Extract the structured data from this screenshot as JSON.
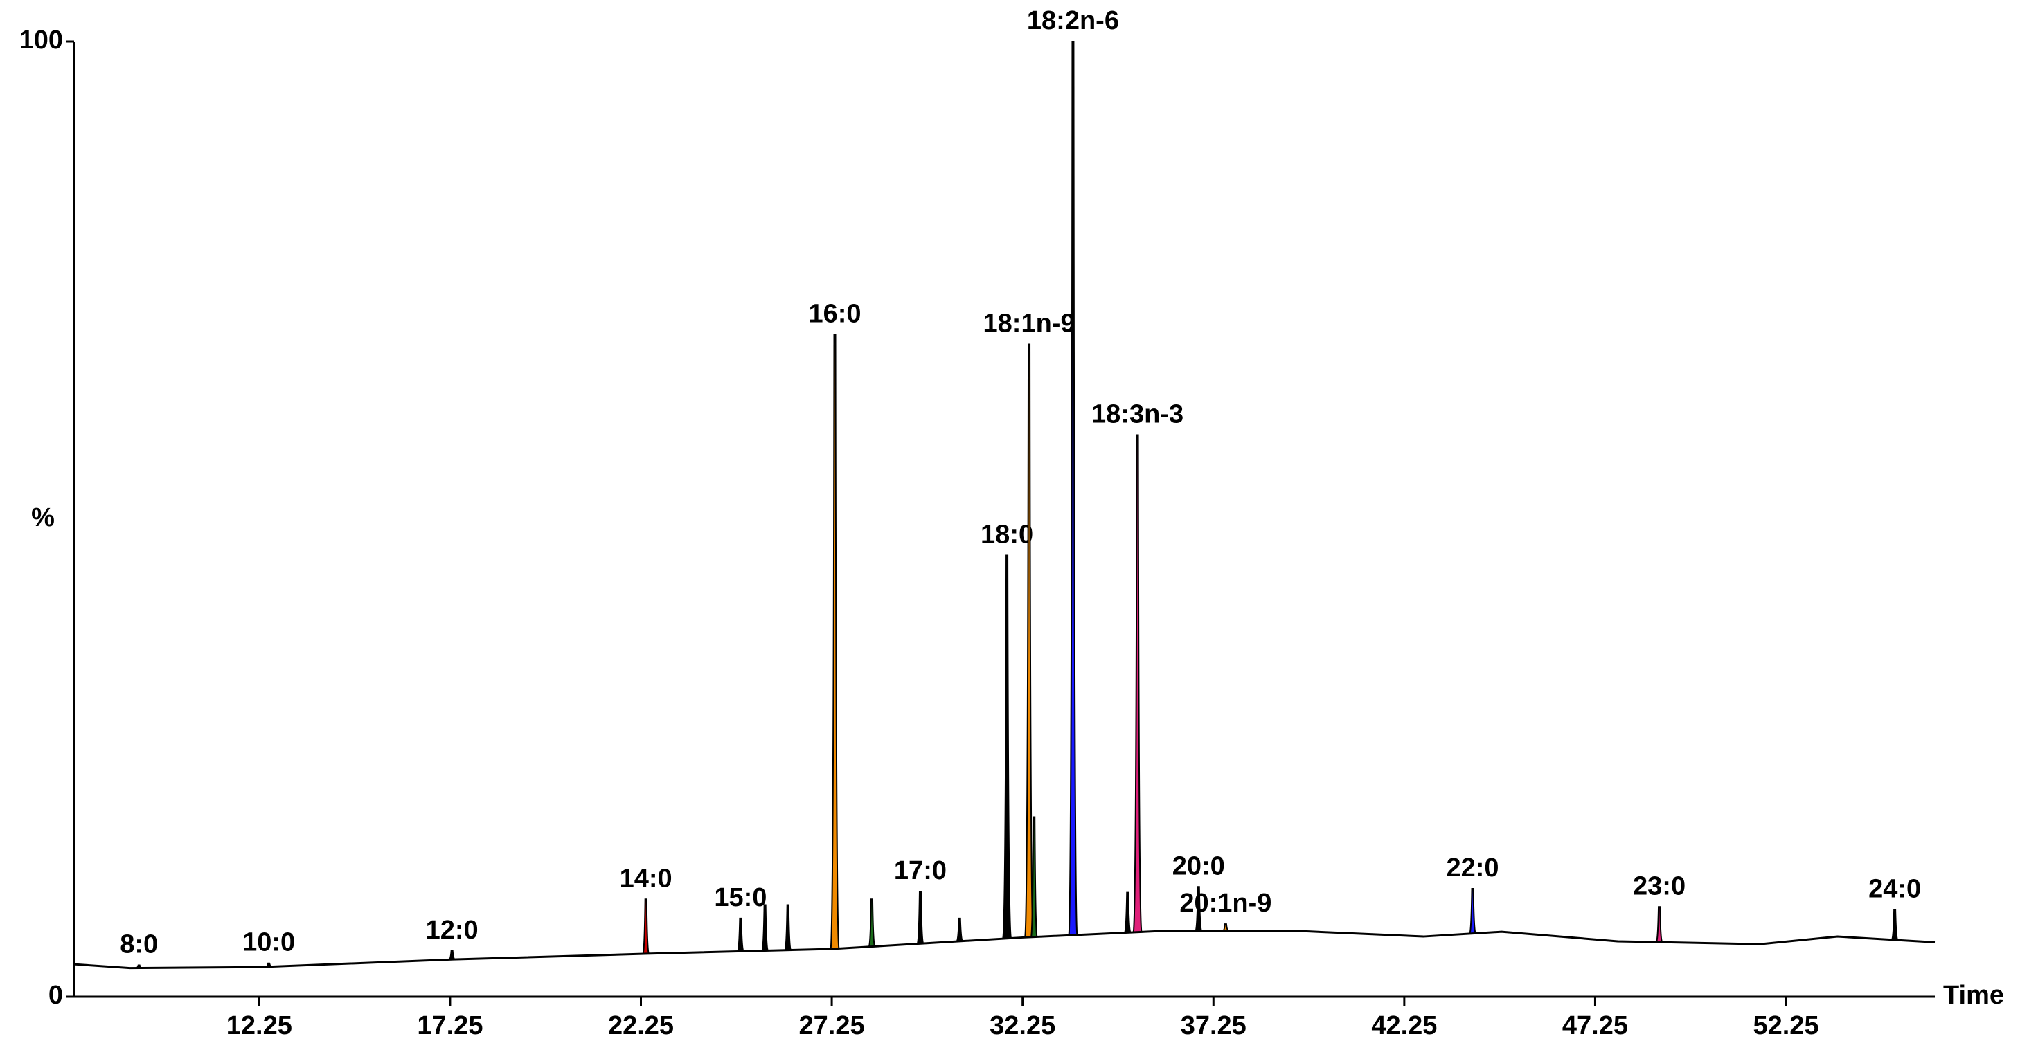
{
  "chart_data": {
    "type": "chromatogram",
    "ylabel": "%",
    "xlabel": "Time",
    "xlim": [
      7.4,
      56.15
    ],
    "ylim": [
      0,
      100
    ],
    "xticks": [
      12.25,
      17.25,
      22.25,
      27.25,
      32.25,
      37.25,
      42.25,
      47.25,
      52.25
    ],
    "yticks": [
      0,
      100
    ],
    "baseline": {
      "x": [
        7.4,
        8.86,
        12.25,
        17.33,
        22.42,
        27.26,
        32.25,
        36.0,
        39.4,
        42.75,
        44.8,
        47.84,
        51.57,
        53.6,
        56.15
      ],
      "values": [
        3.4,
        3.0,
        3.1,
        3.9,
        4.5,
        5.0,
        6.2,
        6.9,
        6.9,
        6.3,
        6.8,
        5.8,
        5.5,
        6.3,
        5.7
      ]
    },
    "peaks": {
      "categories": [
        "8:0",
        "10:0",
        "12:0",
        "14:0",
        "15:0",
        null,
        null,
        "16:0",
        null,
        "17:0",
        null,
        "18:0",
        "18:1n-9",
        null,
        "18:2n-6",
        null,
        "18:3n-3",
        "20:0",
        "20:1n-9",
        "22:0",
        "23:0",
        "24:0"
      ],
      "x": [
        9.1,
        12.5,
        17.3,
        22.38,
        24.86,
        25.5,
        26.1,
        27.33,
        28.3,
        29.57,
        30.6,
        31.84,
        32.42,
        32.55,
        33.57,
        35.0,
        35.26,
        36.86,
        37.57,
        44.04,
        48.93,
        55.1
      ],
      "values": [
        3.3,
        3.5,
        4.8,
        10.2,
        8.2,
        9.6,
        9.6,
        69.3,
        10.2,
        11.0,
        8.2,
        46.2,
        68.3,
        18.8,
        100,
        10.9,
        58.8,
        11.5,
        7.6,
        11.3,
        9.4,
        9.1
      ],
      "colors": [
        "#000000",
        "#000000",
        "#000000",
        "#cc0000",
        "#000000",
        "#000000",
        "#000000",
        "#f08a00",
        "#1a6b1a",
        "#000000",
        "#000000",
        "#000000",
        "#f08a00",
        "#1a6b1a",
        "#1a1aff",
        "#000000",
        "#e0207a",
        "#000000",
        "#f08a00",
        "#1a1aff",
        "#e0207a",
        "#000000"
      ]
    }
  }
}
